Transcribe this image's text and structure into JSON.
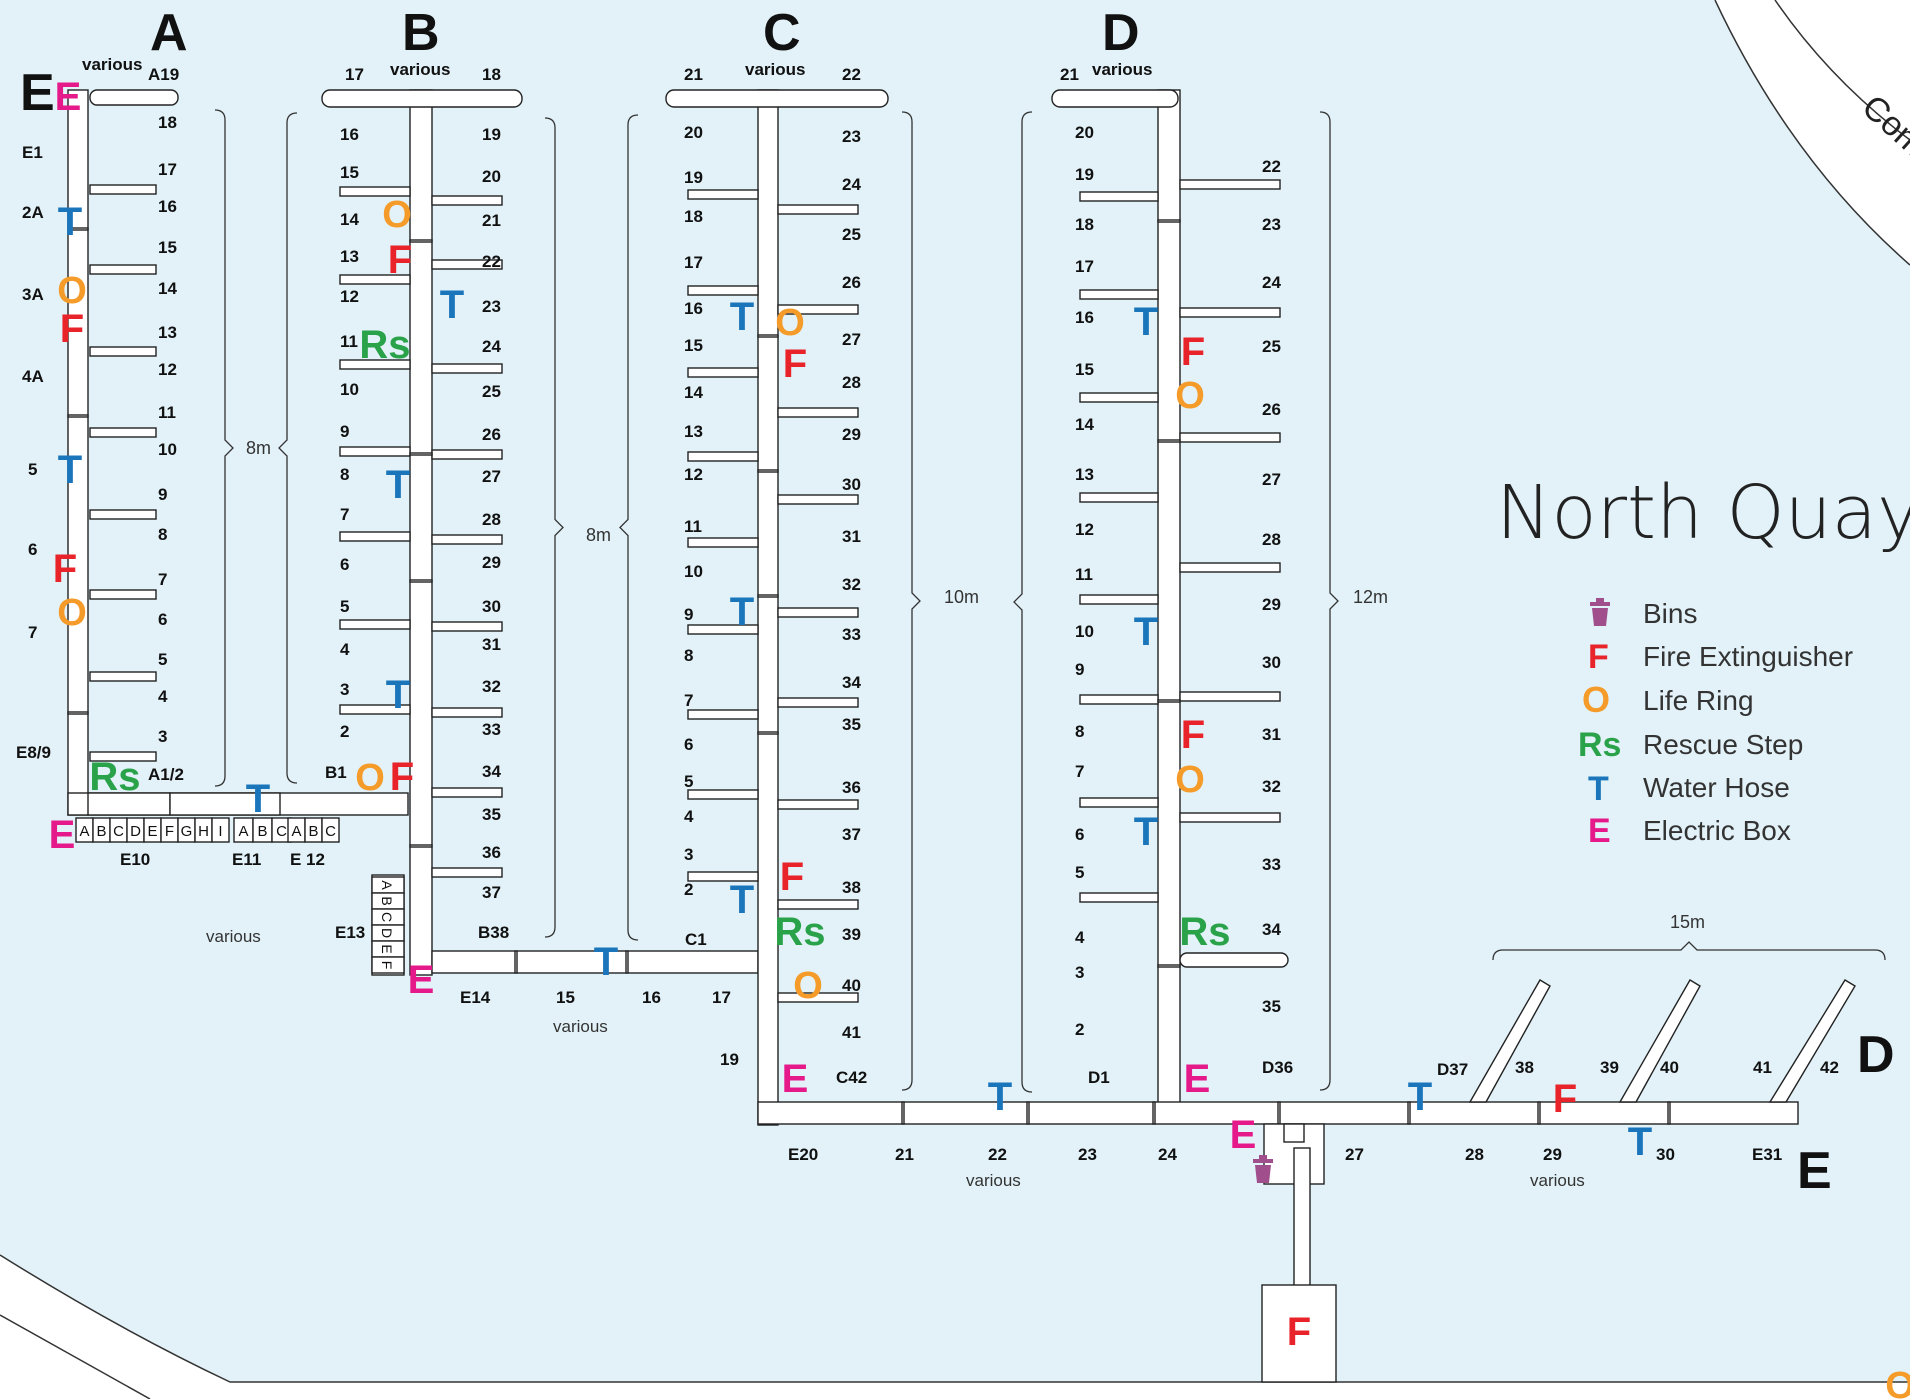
{
  "title": "North Quay",
  "harbour_text": "Com",
  "colors": {
    "water": "#e2f2f8",
    "fire": "#e8232a",
    "ring": "#f59b2a",
    "rescue": "#2aa24a",
    "hose": "#1b75bb",
    "electric": "#e6198b",
    "bins": "#a04e8c"
  },
  "legend": [
    {
      "sym": "bin",
      "label": "Bins"
    },
    {
      "sym": "F",
      "label": "Fire Extinguisher"
    },
    {
      "sym": "O",
      "label": "Life Ring"
    },
    {
      "sym": "Rs",
      "label": "Rescue Step"
    },
    {
      "sym": "T",
      "label": "Water Hose"
    },
    {
      "sym": "E",
      "label": "Electric Box"
    }
  ],
  "letters": {
    "A": "A",
    "B": "B",
    "C": "C",
    "D": "D",
    "D2": "D",
    "E1": "E",
    "E2": "E"
  },
  "various": "various",
  "widths": {
    "a": "8m",
    "b": "8m",
    "c": "10m",
    "d": "12m",
    "e": "15m"
  },
  "berths": {
    "a_left": [
      "E1",
      "2A",
      "3A",
      "4A",
      "5",
      "6",
      "7",
      "E8/9"
    ],
    "a_right": [
      "A19",
      "18",
      "17",
      "16",
      "15",
      "14",
      "13",
      "12",
      "11",
      "10",
      "9",
      "8",
      "7",
      "6",
      "5",
      "4",
      "3",
      "A1/2"
    ],
    "b_left": [
      "17",
      "16",
      "15",
      "14",
      "13",
      "12",
      "11",
      "10",
      "9",
      "8",
      "7",
      "6",
      "5",
      "4",
      "3",
      "2",
      "B1"
    ],
    "b_right": [
      "18",
      "19",
      "20",
      "21",
      "22",
      "23",
      "24",
      "25",
      "26",
      "27",
      "28",
      "29",
      "30",
      "31",
      "32",
      "33",
      "34",
      "35",
      "36",
      "37",
      "B38"
    ],
    "c_left": [
      "21",
      "20",
      "19",
      "18",
      "17",
      "16",
      "15",
      "14",
      "13",
      "12",
      "11",
      "10",
      "9",
      "8",
      "7",
      "6",
      "5",
      "4",
      "3",
      "2",
      "C1",
      "19"
    ],
    "c_right": [
      "22",
      "23",
      "24",
      "25",
      "26",
      "27",
      "28",
      "29",
      "30",
      "31",
      "32",
      "33",
      "34",
      "35",
      "36",
      "37",
      "38",
      "39",
      "40",
      "41",
      "C42"
    ],
    "d_left": [
      "21",
      "20",
      "19",
      "18",
      "17",
      "16",
      "15",
      "14",
      "13",
      "12",
      "11",
      "10",
      "9",
      "8",
      "7",
      "6",
      "5",
      "4",
      "3",
      "2",
      "D1"
    ],
    "d_right": [
      "22",
      "23",
      "24",
      "25",
      "26",
      "27",
      "28",
      "29",
      "30",
      "31",
      "32",
      "33",
      "34",
      "35",
      "D36"
    ],
    "e_bottom": [
      "E10",
      "E11",
      "E 12",
      "E13",
      "E14",
      "15",
      "16",
      "17",
      "E20",
      "21",
      "22",
      "23",
      "24",
      "27",
      "28",
      "29",
      "30",
      "E31"
    ],
    "e_top": [
      "D37",
      "38",
      "39",
      "40",
      "41",
      "42"
    ]
  },
  "finger_letters": {
    "e10": [
      "A",
      "B",
      "C",
      "D",
      "E",
      "F",
      "G",
      "H",
      "I"
    ],
    "e11": [
      "A",
      "B",
      "C"
    ],
    "e12": [
      "A",
      "B",
      "C"
    ],
    "e13": [
      "A",
      "B",
      "C",
      "D",
      "E",
      "F"
    ]
  },
  "symbol_chars": {
    "F": "F",
    "O": "O",
    "T": "T",
    "Rs": "Rs",
    "E": "E"
  }
}
